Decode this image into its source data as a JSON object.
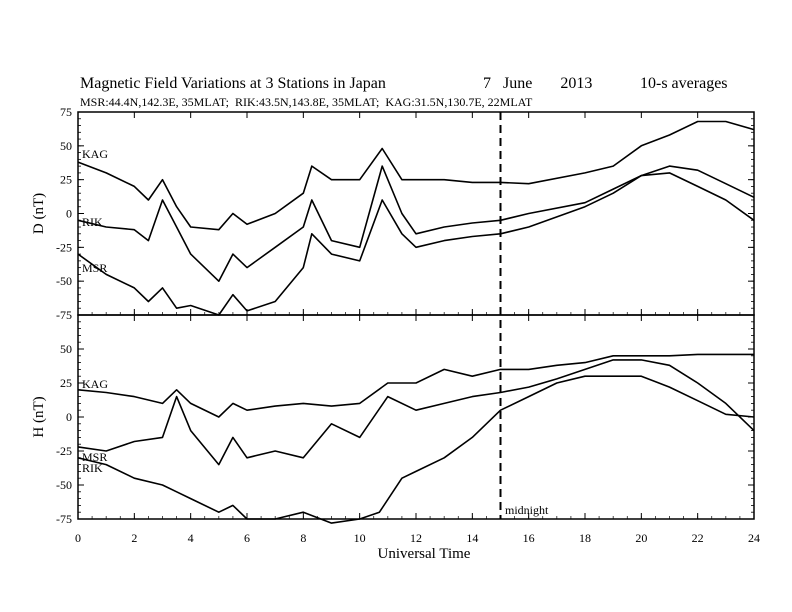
{
  "chart_data": {
    "type": "line",
    "title": "Magnetic Field Variations at 3 Stations in Japan",
    "date_text": "7   June       2013",
    "averaging": "10-s averages",
    "station_info": "MSR:44.4N,142.3E, 35MLAT;  RIK:43.5N,143.8E, 35MLAT;  KAG:31.5N,130.7E, 22MLAT",
    "xlabel": "Universal Time",
    "xlim": [
      0,
      24
    ],
    "x_ticks": [
      "0",
      "2",
      "4",
      "6",
      "8",
      "10",
      "12",
      "14",
      "16",
      "18",
      "20",
      "22",
      "24"
    ],
    "marker": {
      "x": 15,
      "label": "midnight",
      "style": "dashed"
    },
    "panels": [
      {
        "ylabel": "D (nT)",
        "ylim": [
          -75,
          75
        ],
        "y_ticks": [
          "75",
          "50",
          "25",
          "0",
          "-25",
          "-50",
          "-75"
        ],
        "series": [
          {
            "name": "KAG",
            "x": [
              0,
              1,
              2,
              2.5,
              3,
              3.5,
              4,
              5,
              5.5,
              6,
              7,
              8,
              8.3,
              9,
              10,
              10.8,
              11.5,
              12,
              13,
              14,
              15,
              16,
              18,
              19,
              20,
              21,
              22,
              23,
              24
            ],
            "values": [
              38,
              30,
              20,
              10,
              25,
              5,
              -10,
              -12,
              0,
              -8,
              0,
              15,
              35,
              25,
              25,
              48,
              25,
              25,
              25,
              23,
              23,
              22,
              30,
              35,
              50,
              58,
              68,
              68,
              62
            ]
          },
          {
            "name": "RIK",
            "x": [
              0,
              1,
              2,
              2.5,
              3,
              3.5,
              4,
              5,
              5.5,
              6,
              7,
              8,
              8.3,
              9,
              10,
              10.8,
              11.5,
              12,
              13,
              14,
              15,
              16,
              18,
              19,
              20,
              21,
              22,
              23,
              24
            ],
            "values": [
              -5,
              -10,
              -12,
              -20,
              10,
              -10,
              -30,
              -50,
              -30,
              -40,
              -25,
              -10,
              10,
              -20,
              -25,
              35,
              0,
              -15,
              -10,
              -7,
              -5,
              0,
              8,
              18,
              28,
              35,
              32,
              22,
              12
            ]
          },
          {
            "name": "MSR",
            "x": [
              0,
              1,
              2,
              2.5,
              3,
              3.5,
              4,
              5,
              5.5,
              6,
              7,
              8,
              8.3,
              9,
              10,
              10.8,
              11.5,
              12,
              13,
              14,
              15,
              16,
              18,
              19,
              20,
              21,
              22,
              23,
              24
            ],
            "values": [
              -30,
              -45,
              -55,
              -65,
              -55,
              -70,
              -68,
              -75,
              -60,
              -72,
              -65,
              -40,
              -15,
              -30,
              -35,
              10,
              -15,
              -25,
              -20,
              -17,
              -15,
              -10,
              5,
              15,
              28,
              30,
              20,
              10,
              -5
            ]
          }
        ]
      },
      {
        "ylabel": "H (nT)",
        "ylim": [
          -75,
          75
        ],
        "y_ticks": [
          "50",
          "25",
          "0",
          "-25",
          "-50",
          "-75"
        ],
        "series": [
          {
            "name": "KAG",
            "x": [
              0,
              1,
              2,
              3,
              3.5,
              4,
              5,
              5.5,
              6,
              7,
              8,
              9,
              10,
              11,
              12,
              13,
              14,
              15,
              16,
              17,
              18,
              19,
              20,
              21,
              22,
              23,
              24
            ],
            "values": [
              20,
              18,
              15,
              10,
              20,
              10,
              0,
              10,
              5,
              8,
              10,
              8,
              10,
              25,
              25,
              35,
              30,
              35,
              35,
              38,
              40,
              45,
              45,
              45,
              46,
              46,
              46
            ]
          },
          {
            "name": "MSR",
            "x": [
              0,
              1,
              2,
              3,
              3.5,
              4,
              5,
              5.5,
              6,
              7,
              8,
              9,
              10,
              11,
              12,
              13,
              14,
              15,
              16,
              17,
              18,
              19,
              20,
              21,
              22,
              23,
              24
            ],
            "values": [
              -22,
              -25,
              -18,
              -15,
              15,
              -10,
              -35,
              -15,
              -30,
              -25,
              -30,
              -5,
              -15,
              15,
              5,
              10,
              15,
              18,
              22,
              28,
              35,
              42,
              42,
              38,
              25,
              10,
              -10
            ]
          },
          {
            "name": "RIK",
            "x": [
              0,
              1,
              2,
              3,
              3.5,
              4,
              5,
              5.5,
              6,
              7,
              8,
              9,
              10,
              10.7,
              11.5,
              12,
              13,
              14,
              15,
              16,
              17,
              18,
              19,
              20,
              21,
              22,
              23,
              24
            ],
            "values": [
              -30,
              -35,
              -45,
              -50,
              -55,
              -60,
              -70,
              -65,
              -75,
              -75,
              -70,
              -78,
              -75,
              -70,
              -45,
              -40,
              -30,
              -15,
              5,
              15,
              25,
              30,
              30,
              30,
              22,
              12,
              2,
              0
            ]
          }
        ]
      }
    ]
  }
}
